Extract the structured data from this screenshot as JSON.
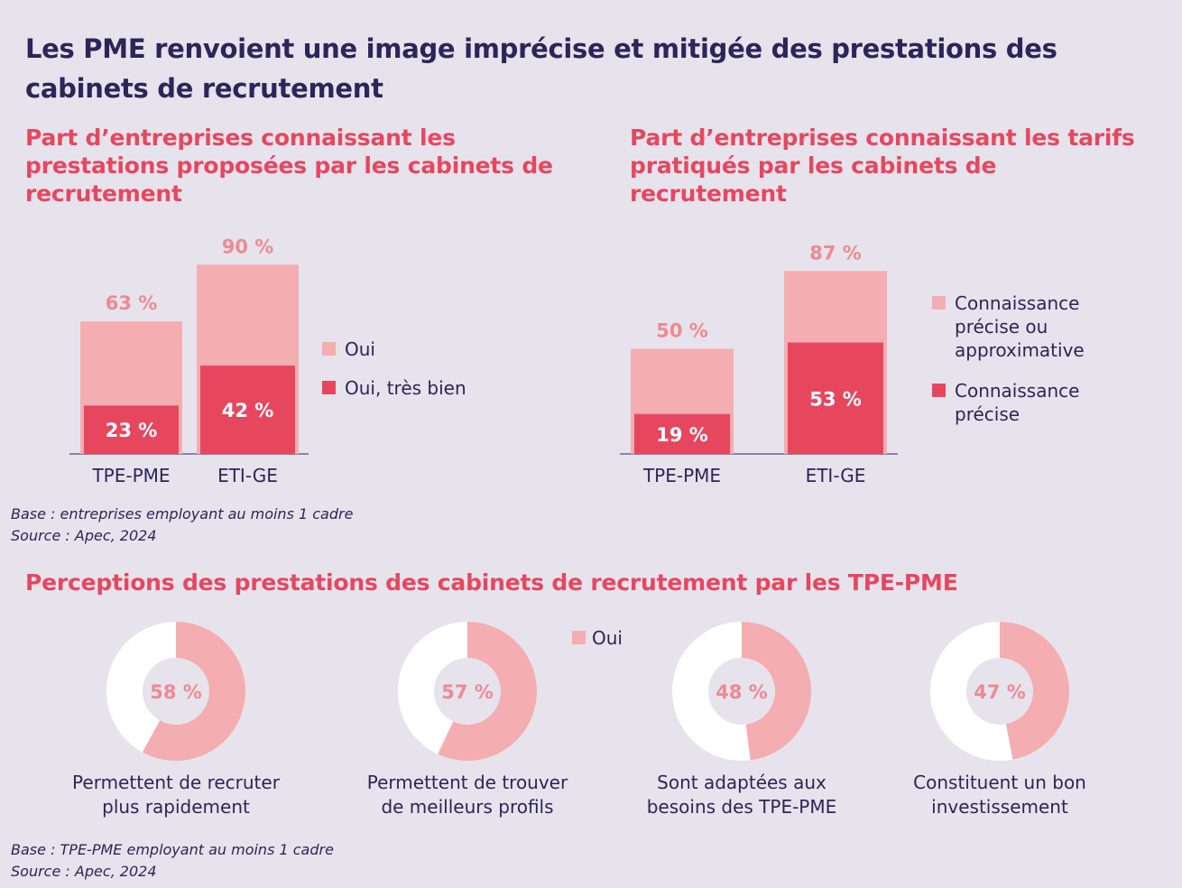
{
  "title": "Les PME renvoient une image imprécise et mitigée des prestations des cabinets de recrutement",
  "colors": {
    "light": "#f4adb0",
    "dark": "#e6475f",
    "text": "#2b2559",
    "accent": "#e6475f",
    "donut_rest": "#ffffff"
  },
  "chart_data": [
    {
      "type": "bar",
      "title": "Part d’entreprises connaissant les prestations proposées par les cabinets de recrutement",
      "categories": [
        "TPE-PME",
        "ETI-GE"
      ],
      "series": [
        {
          "name": "Oui",
          "values": [
            63,
            90
          ],
          "labels": [
            "63 %",
            "90 %"
          ]
        },
        {
          "name": "Oui, très bien",
          "values": [
            23,
            42
          ],
          "labels": [
            "23 %",
            "42 %"
          ]
        }
      ],
      "ylim": [
        0,
        100
      ],
      "legend": "right"
    },
    {
      "type": "bar",
      "title": "Part d’entreprises connaissant les tarifs pratiqués par les cabinets de recrutement",
      "categories": [
        "TPE-PME",
        "ETI-GE"
      ],
      "series": [
        {
          "name": "Connaissance précise ou approximative",
          "name_lines": [
            "Connaissance",
            "précise ou",
            "approximative"
          ],
          "values": [
            50,
            87
          ],
          "labels": [
            "50 %",
            "87 %"
          ]
        },
        {
          "name": "Connaissance précise",
          "name_lines": [
            "Connaissance",
            "précise"
          ],
          "values": [
            19,
            53
          ],
          "labels": [
            "19 %",
            "53 %"
          ]
        }
      ],
      "ylim": [
        0,
        100
      ],
      "legend": "right"
    },
    {
      "type": "pie",
      "title": "Perceptions des prestations des cabinets de recrutement par les TPE-PME",
      "legend": "Oui",
      "items": [
        {
          "value": 58,
          "label": "58 %",
          "caption": [
            "Permettent de recruter",
            "plus rapidement"
          ]
        },
        {
          "value": 57,
          "label": "57 %",
          "caption": [
            "Permettent de trouver",
            "de meilleurs profils"
          ]
        },
        {
          "value": 48,
          "label": "48 %",
          "caption": [
            "Sont adaptées aux",
            "besoins des TPE-PME"
          ]
        },
        {
          "value": 47,
          "label": "47 %",
          "caption": [
            "Constituent un bon",
            "investissement"
          ]
        }
      ]
    }
  ],
  "sources": {
    "top": [
      "Base : entreprises employant au moins 1 cadre",
      "Source : Apec, 2024"
    ],
    "bottom": [
      "Base : TPE-PME employant au moins 1 cadre",
      "Source : Apec, 2024"
    ]
  }
}
